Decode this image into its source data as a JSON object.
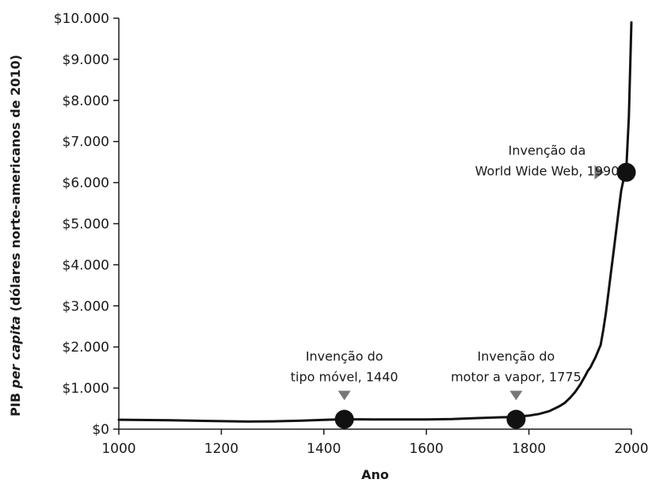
{
  "chart_data": {
    "type": "line",
    "title": "",
    "xlabel": "Ano",
    "ylabel_parts": [
      "PIB ",
      "per capita",
      " (dólares norte-americanos de 2010)"
    ],
    "xlim": [
      1000,
      2000
    ],
    "ylim": [
      0,
      10000
    ],
    "x_ticks": [
      1000,
      1200,
      1400,
      1600,
      1800,
      2000
    ],
    "x_tick_labels": [
      "1000",
      "1200",
      "1400",
      "1600",
      "1800",
      "2000"
    ],
    "y_ticks": [
      0,
      1000,
      2000,
      3000,
      4000,
      5000,
      6000,
      7000,
      8000,
      9000,
      10000
    ],
    "y_tick_labels": [
      "$0",
      "$1.000",
      "$2.000",
      "$3.000",
      "$4.000",
      "$5.000",
      "$6.000",
      "$7.000",
      "$8.000",
      "$9.000",
      "$10.000"
    ],
    "grid": false,
    "line_color": "#111111",
    "marker_color": "#111111",
    "arrow_color": "#777777",
    "series": [
      {
        "x": [
          1000,
          1100,
          1200,
          1250,
          1300,
          1350,
          1400,
          1440,
          1500,
          1600,
          1650,
          1700,
          1775,
          1800,
          1820,
          1840,
          1860,
          1870,
          1880,
          1890,
          1900,
          1910,
          1915,
          1920,
          1930,
          1940,
          1945,
          1950,
          1955,
          1960,
          1965,
          1970,
          1975,
          1980,
          1985,
          1990,
          1995,
          2000
        ],
        "y": [
          230,
          215,
          195,
          185,
          190,
          205,
          225,
          240,
          235,
          235,
          245,
          270,
          300,
          330,
          370,
          440,
          560,
          640,
          760,
          900,
          1080,
          1300,
          1420,
          1500,
          1750,
          2050,
          2400,
          2800,
          3300,
          3800,
          4300,
          4800,
          5300,
          5800,
          6100,
          6300,
          7600,
          9900
        ]
      }
    ],
    "annotations": [
      {
        "lines": [
          "Invenção do",
          "tipo móvel, 1440"
        ],
        "x": 1440,
        "y": 240
      },
      {
        "lines": [
          "Invenção do",
          "motor a vapor, 1775"
        ],
        "x": 1775,
        "y": 240
      },
      {
        "lines": [
          "Invenção da",
          "World Wide Web, 1990"
        ],
        "x": 1990,
        "y": 6250
      }
    ]
  }
}
